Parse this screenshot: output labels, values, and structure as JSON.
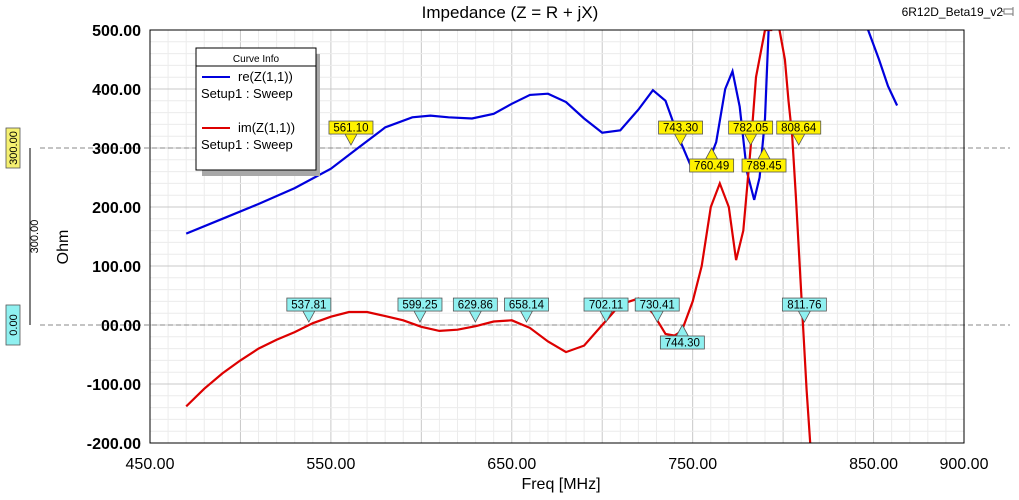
{
  "window": {
    "project_label": "6R12D_Beta19_v2"
  },
  "chart_data": {
    "type": "line",
    "title": "Impedance (Z = R + jX)",
    "xlabel": "Freq [MHz]",
    "ylabel": "Ohm",
    "xlim": [
      450,
      900
    ],
    "ylim": [
      -200,
      500
    ],
    "x_ticks": [
      "450.00",
      "550.00",
      "650.00",
      "750.00",
      "850.00",
      "900.00"
    ],
    "x_tick_values": [
      450,
      550,
      650,
      750,
      850,
      900
    ],
    "y_ticks": [
      "500.00",
      "400.00",
      "300.00",
      "200.00",
      "100.00",
      "00.00",
      "-100.00",
      "-200.00"
    ],
    "y_tick_values": [
      500,
      400,
      300,
      200,
      100,
      0,
      -100,
      -200
    ],
    "grid": true,
    "legend": {
      "title": "Curve Info",
      "placement": "top-left",
      "entries": [
        {
          "name": "re(Z(1,1))",
          "setup": "Setup1 : Sweep",
          "color": "#0000dd"
        },
        {
          "name": "im(Z(1,1))",
          "setup": "Setup1 : Sweep",
          "color": "#dd0000"
        }
      ]
    },
    "side_markers": [
      {
        "label": "300.00",
        "value": 300,
        "color": "#f5f070"
      },
      {
        "label": "0.00",
        "value": 0,
        "color": "#8ff0f0"
      }
    ],
    "side_delta_label": "300.00",
    "series": [
      {
        "name": "re(Z(1,1))",
        "color": "#0000dd",
        "x": [
          470,
          490,
          510,
          530,
          550,
          565,
          580,
          595,
          605,
          615,
          628,
          640,
          650,
          660,
          670,
          680,
          690,
          700,
          710,
          720,
          728,
          735,
          742,
          750,
          757,
          763,
          768,
          772,
          776,
          780,
          784,
          787,
          790,
          792
        ],
        "y": [
          155,
          180,
          205,
          232,
          265,
          300,
          335,
          352,
          355,
          352,
          350,
          358,
          375,
          390,
          392,
          378,
          350,
          326,
          330,
          365,
          398,
          380,
          320,
          262,
          262,
          310,
          400,
          430,
          370,
          260,
          212,
          250,
          350,
          500
        ]
      },
      {
        "name": "re(Z(1,1)) segment 2",
        "color": "#0000dd",
        "x": [
          847,
          853,
          858,
          863
        ],
        "y": [
          500,
          450,
          405,
          372
        ]
      },
      {
        "name": "im(Z(1,1))",
        "color": "#dd0000",
        "x": [
          470,
          480,
          490,
          500,
          510,
          520,
          530,
          540,
          550,
          560,
          570,
          580,
          590,
          600,
          610,
          620,
          630,
          640,
          650,
          660,
          670,
          680,
          690,
          700,
          710,
          720,
          728,
          735,
          740,
          744,
          750,
          755,
          760,
          765,
          770,
          774,
          778,
          782,
          785,
          790,
          794
        ],
        "y": [
          -138,
          -108,
          -82,
          -60,
          -40,
          -25,
          -12,
          3,
          14,
          22,
          22,
          15,
          8,
          -3,
          -10,
          -8,
          -2,
          6,
          8,
          -5,
          -28,
          -46,
          -35,
          0,
          35,
          45,
          20,
          -15,
          -18,
          -10,
          40,
          100,
          200,
          240,
          200,
          110,
          160,
          300,
          420,
          500,
          500
        ]
      },
      {
        "name": "im(Z(1,1)) segment 2",
        "color": "#dd0000",
        "x": [
          798,
          801,
          803,
          805,
          807,
          809,
          811,
          813,
          815
        ],
        "y": [
          500,
          450,
          380,
          320,
          220,
          110,
          0,
          -110,
          -200
        ]
      }
    ],
    "markers": [
      {
        "label": "561.10",
        "x": 561.1,
        "y": 305,
        "color": "#fff200",
        "pos": "above"
      },
      {
        "label": "743.30",
        "x": 743.3,
        "y": 305,
        "color": "#fff200",
        "pos": "above"
      },
      {
        "label": "782.05",
        "x": 782.05,
        "y": 305,
        "color": "#fff200",
        "pos": "above"
      },
      {
        "label": "808.64",
        "x": 808.64,
        "y": 305,
        "color": "#fff200",
        "pos": "above"
      },
      {
        "label": "760.49",
        "x": 760.49,
        "y": 300,
        "color": "#fff200",
        "pos": "below"
      },
      {
        "label": "789.45",
        "x": 789.45,
        "y": 300,
        "color": "#fff200",
        "pos": "below"
      },
      {
        "label": "537.81",
        "x": 537.81,
        "y": 5,
        "color": "#8ff0f0",
        "pos": "above"
      },
      {
        "label": "599.25",
        "x": 599.25,
        "y": 5,
        "color": "#8ff0f0",
        "pos": "above"
      },
      {
        "label": "629.86",
        "x": 629.86,
        "y": 5,
        "color": "#8ff0f0",
        "pos": "above"
      },
      {
        "label": "658.14",
        "x": 658.14,
        "y": 5,
        "color": "#8ff0f0",
        "pos": "above"
      },
      {
        "label": "702.11",
        "x": 702.11,
        "y": 5,
        "color": "#8ff0f0",
        "pos": "above"
      },
      {
        "label": "730.41",
        "x": 730.41,
        "y": 5,
        "color": "#8ff0f0",
        "pos": "above"
      },
      {
        "label": "811.76",
        "x": 811.76,
        "y": 5,
        "color": "#8ff0f0",
        "pos": "above"
      },
      {
        "label": "744.30",
        "x": 744.3,
        "y": 0,
        "color": "#8ff0f0",
        "pos": "below"
      }
    ]
  }
}
